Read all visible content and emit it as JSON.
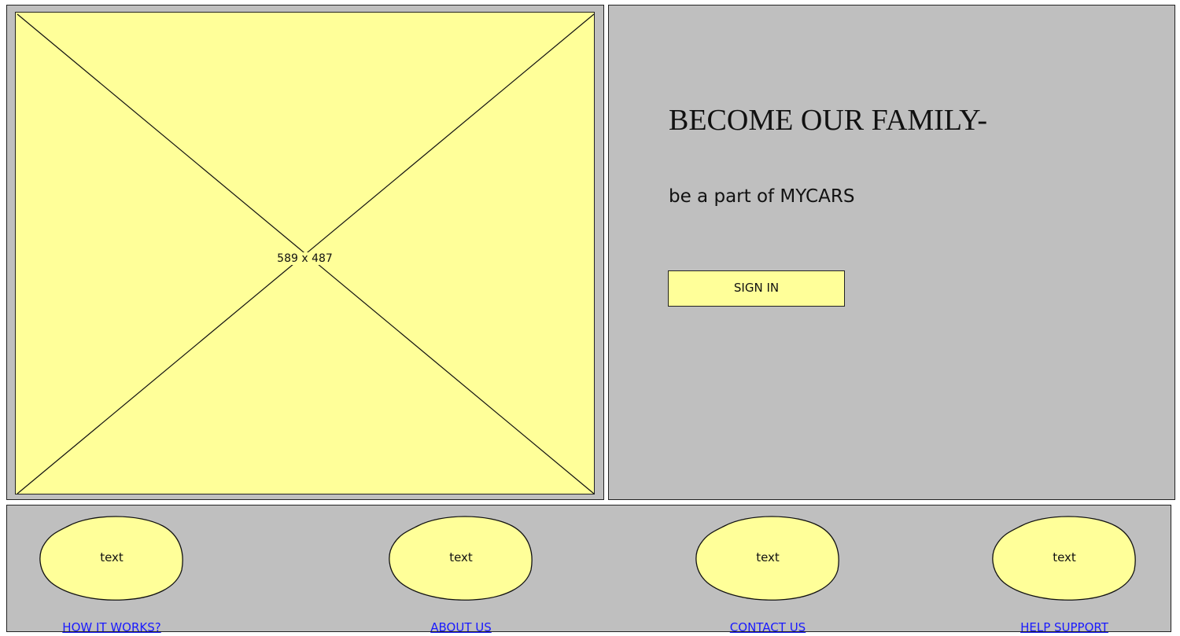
{
  "image_placeholder": {
    "label": "589 x 487"
  },
  "hero": {
    "headline": "BECOME OUR FAMILY-",
    "subline": "be a part of MYCARS",
    "signin_label": "SIGN IN"
  },
  "colors": {
    "panel_gray": "#bfbfbf",
    "placeholder_yellow": "#ffff99",
    "link_blue": "#1a1aff"
  },
  "footer": {
    "items": [
      {
        "blob_text": "text",
        "link_label": "HOW IT WORKS?"
      },
      {
        "blob_text": "text",
        "link_label": "ABOUT US"
      },
      {
        "blob_text": "text",
        "link_label": "CONTACT US"
      },
      {
        "blob_text": "text",
        "link_label": "HELP SUPPORT"
      }
    ]
  }
}
